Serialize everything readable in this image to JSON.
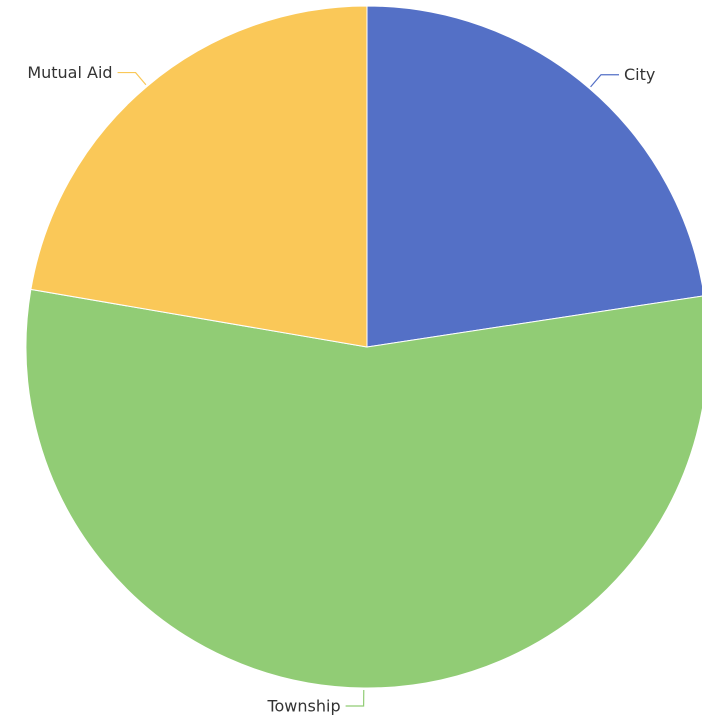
{
  "chart_data": {
    "type": "pie",
    "title": "",
    "start_angle_deg": 0,
    "direction": "clockwise",
    "slices": [
      {
        "label": "City",
        "value": 22.6,
        "color": "#5470c6"
      },
      {
        "label": "Township",
        "value": 55.1,
        "color": "#91cc75"
      },
      {
        "label": "Mutual Aid",
        "value": 22.3,
        "color": "#fac858"
      }
    ]
  }
}
